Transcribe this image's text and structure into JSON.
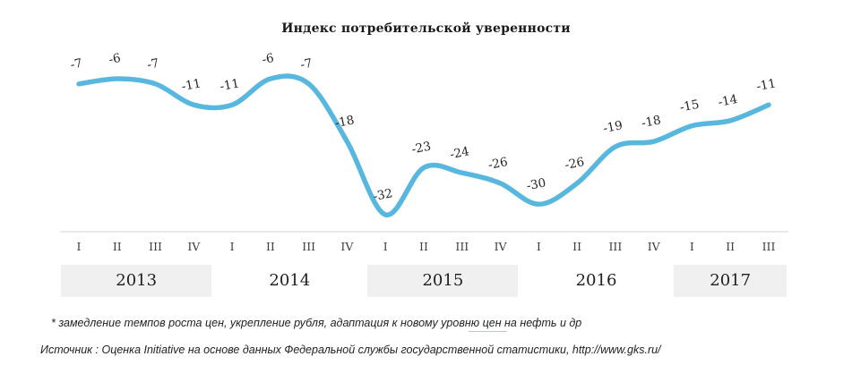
{
  "title": "Индекс потребительской уверенности",
  "footnote": "* замедление темпов роста цен, укрепление рубля, адаптация к новому уровню цен на нефть и др",
  "source": "Источник : Оценка Initiative на основе данных Федеральной службы государственной статистики, http://www.gks.ru/",
  "chart_data": {
    "type": "line",
    "title": "Индекс потребительской уверенности",
    "categories": [
      "I",
      "II",
      "III",
      "IV",
      "I",
      "II",
      "III",
      "IV",
      "I",
      "II",
      "III",
      "IV",
      "I",
      "II",
      "III",
      "IV",
      "I",
      "II",
      "III"
    ],
    "values": [
      -7,
      -6,
      -7,
      -11,
      -11,
      -6,
      -7,
      -18,
      -32,
      -23,
      -24,
      -26,
      -30,
      -26,
      -19,
      -18,
      -15,
      -14,
      -11
    ],
    "years": [
      {
        "label": "2013",
        "quarters": 4,
        "shaded": true
      },
      {
        "label": "2014",
        "quarters": 4,
        "shaded": false
      },
      {
        "label": "2015",
        "quarters": 4,
        "shaded": true
      },
      {
        "label": "2016",
        "quarters": 4,
        "shaded": false
      },
      {
        "label": "2017",
        "quarters": 3,
        "shaded": true
      }
    ],
    "xlabel": "",
    "ylabel": "",
    "ylim": [
      -34,
      -4
    ],
    "grid": false,
    "legend": "none",
    "data_labels": true,
    "line_color": "#58B7DF",
    "label_color": "#262626",
    "axis_line_color": "#d9d9d9",
    "year_band_color": "#f0f0f0"
  }
}
